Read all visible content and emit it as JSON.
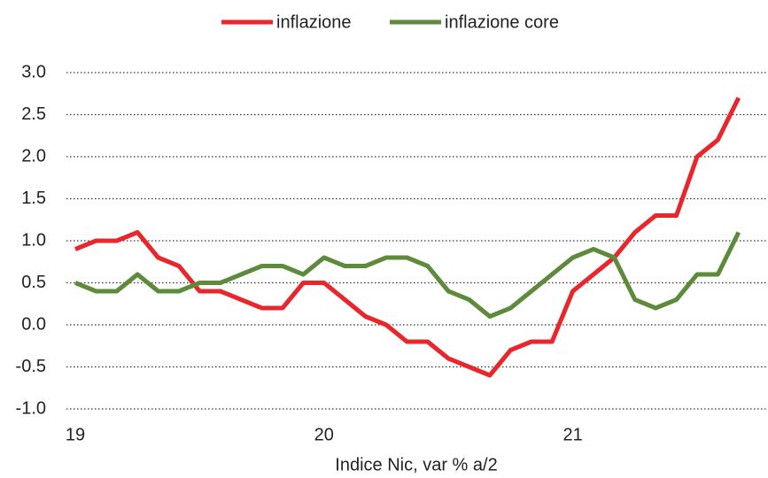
{
  "chart_data": {
    "type": "line",
    "xlabel": "Indice Nic, var % a/2",
    "categories": [
      "19",
      null,
      null,
      null,
      null,
      null,
      null,
      null,
      null,
      null,
      null,
      null,
      "20",
      null,
      null,
      null,
      null,
      null,
      null,
      null,
      null,
      null,
      null,
      null,
      "21",
      null,
      null,
      null,
      null,
      null,
      null,
      null,
      null
    ],
    "series": [
      {
        "name": "inflazione",
        "color": "#e8262b",
        "values": [
          0.9,
          1.0,
          1.0,
          1.1,
          0.8,
          0.7,
          0.4,
          0.4,
          0.3,
          0.2,
          0.2,
          0.5,
          0.5,
          0.3,
          0.1,
          0.0,
          -0.2,
          -0.2,
          -0.4,
          -0.5,
          -0.6,
          -0.3,
          -0.2,
          -0.2,
          0.4,
          0.6,
          0.8,
          1.1,
          1.3,
          1.3,
          2.0,
          2.2,
          2.7
        ]
      },
      {
        "name": "inflazione core",
        "color": "#5e8a3c",
        "values": [
          0.5,
          0.4,
          0.4,
          0.6,
          0.4,
          0.4,
          0.5,
          0.5,
          0.6,
          0.7,
          0.7,
          0.6,
          0.8,
          0.7,
          0.7,
          0.8,
          0.8,
          0.7,
          0.4,
          0.3,
          0.1,
          0.2,
          0.4,
          0.6,
          0.8,
          0.9,
          0.8,
          0.3,
          0.2,
          0.3,
          0.6,
          0.6,
          1.1
        ]
      }
    ],
    "ylim": [
      -1.0,
      3.0
    ],
    "yticks": [
      {
        "value": -1.0,
        "label": "-1.0"
      },
      -0.5,
      {
        "value": 0.0,
        "label": "0.0"
      },
      0.5,
      {
        "value": 1.0,
        "label": "1.0"
      },
      1.5,
      {
        "value": 2.0,
        "label": "2.0"
      },
      2.5,
      {
        "value": 3.0,
        "label": "3.0"
      }
    ],
    "grid": true,
    "legend": "top"
  }
}
